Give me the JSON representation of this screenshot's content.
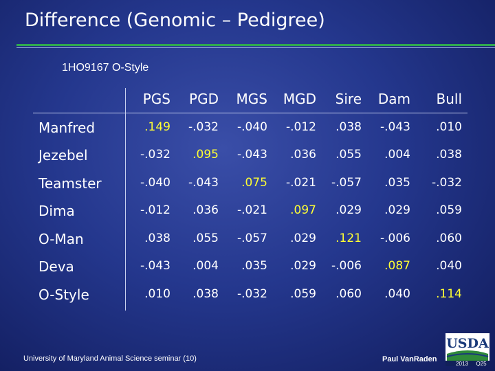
{
  "title": "Difference (Genomic – Pedigree)",
  "subtitle": "1HO9167 O-Style",
  "table": {
    "columns": [
      "PGS",
      "PGD",
      "MGS",
      "MGD",
      "Sire",
      "Dam",
      "Bull"
    ],
    "rows": [
      {
        "label": "Manfred",
        "values": [
          ".149",
          "-.032",
          "-.040",
          "-.012",
          ".038",
          "-.043",
          ".010"
        ]
      },
      {
        "label": "Jezebel",
        "values": [
          "-.032",
          ".095",
          "-.043",
          ".036",
          ".055",
          ".004",
          ".038"
        ]
      },
      {
        "label": "Teamster",
        "values": [
          "-.040",
          "-.043",
          ".075",
          "-.021",
          "-.057",
          ".035",
          "-.032"
        ]
      },
      {
        "label": "Dima",
        "values": [
          "-.012",
          ".036",
          "-.021",
          ".097",
          ".029",
          ".029",
          ".059"
        ]
      },
      {
        "label": "O-Man",
        "values": [
          ".038",
          ".055",
          "-.057",
          ".029",
          ".121",
          "-.006",
          ".060"
        ]
      },
      {
        "label": "Deva",
        "values": [
          "-.043",
          ".004",
          ".035",
          ".029",
          "-.006",
          ".087",
          ".040"
        ]
      },
      {
        "label": "O-Style",
        "values": [
          ".010",
          ".038",
          "-.032",
          ".059",
          ".060",
          ".040",
          ".114"
        ]
      }
    ]
  },
  "footer": {
    "seminar": "University of Maryland Animal Science seminar (10)",
    "author": "Paul VanRaden",
    "logo_text": "USDA",
    "year": "2013",
    "year_suffix": "Q25"
  },
  "colors": {
    "background": "#24378d",
    "text": "#ffffff",
    "diagonal": "#ffff33",
    "rule": "#2fa84f"
  }
}
